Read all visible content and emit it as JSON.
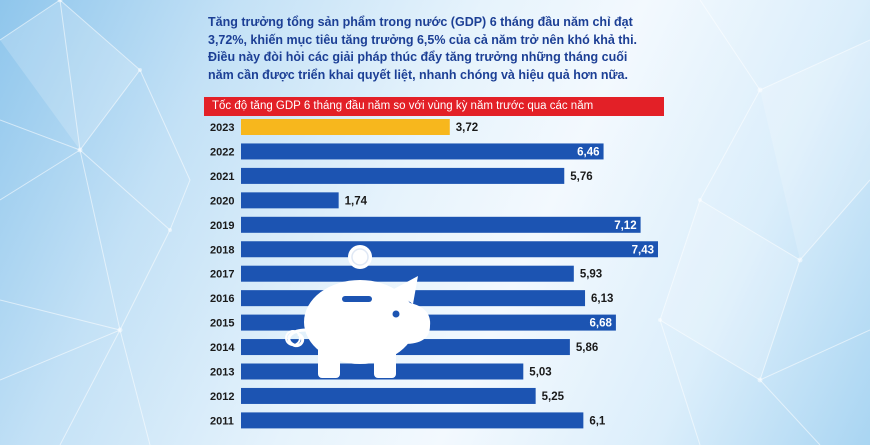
{
  "intro": {
    "lines": [
      "Tăng trưởng tổng sản phẩm trong nước (GDP) 6 tháng đầu năm chỉ đạt",
      "3,72%, khiến mục tiêu tăng trưởng 6,5% của cả năm trở nên khó khả thi.",
      "Điều này đòi hỏi các giải pháp thúc đẩy tăng trưởng những tháng cuối",
      "năm cần được triển khai quyết liệt, nhanh chóng và hiệu quả hơn nữa."
    ]
  },
  "chart_data": {
    "type": "bar",
    "orientation": "horizontal",
    "title": "Tốc độ tăng GDP 6 tháng đầu năm so với vùng kỳ năm trước qua các năm",
    "categories": [
      "2023",
      "2022",
      "2021",
      "2020",
      "2019",
      "2018",
      "2017",
      "2016",
      "2015",
      "2014",
      "2013",
      "2012",
      "2011"
    ],
    "values": [
      3.72,
      6.46,
      5.76,
      1.74,
      7.12,
      7.43,
      5.93,
      6.13,
      6.68,
      5.86,
      5.03,
      5.25,
      6.1
    ],
    "value_labels": [
      "3,72",
      "6,46",
      "5,76",
      "1,74",
      "7,12",
      "7,43",
      "5,93",
      "6,13",
      "6,68",
      "5,86",
      "5,03",
      "5,25",
      "6,1"
    ],
    "colors": {
      "highlight": "#f7b71d",
      "bar": "#1c54b2",
      "title_bg": "#e32027",
      "intro_text": "#1c3f95"
    },
    "highlight_category": "2023",
    "xlim": [
      0,
      7.43
    ],
    "grid": false,
    "legend": "none"
  },
  "icons": [
    "piggy-bank-icon",
    "coin-icon"
  ]
}
